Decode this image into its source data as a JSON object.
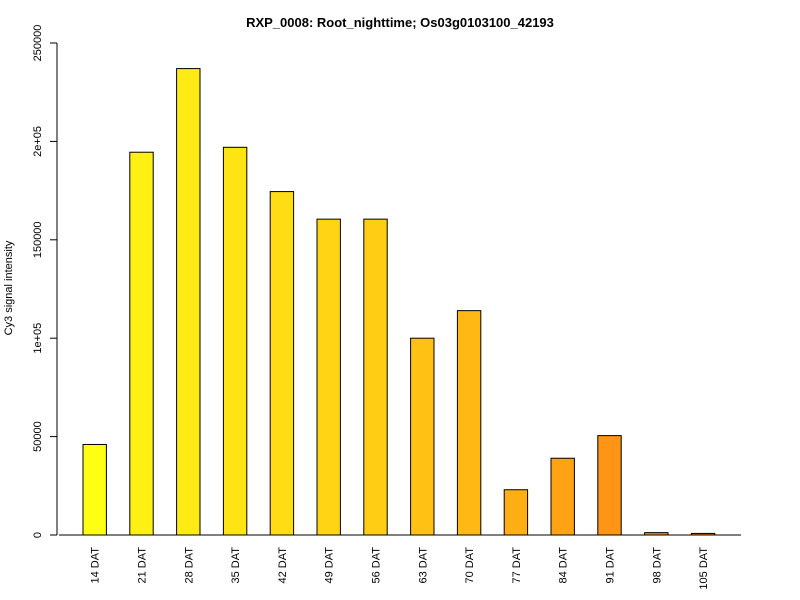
{
  "chart_data": {
    "type": "bar",
    "title": "RXP_0008: Root_nighttime; Os03g0103100_42193",
    "xlabel": "",
    "ylabel": "Cy3 signal intensity",
    "ylim": [
      0,
      250000
    ],
    "yticks": [
      0,
      50000,
      100000,
      150000,
      200000,
      250000
    ],
    "ytick_labels": [
      "0",
      "50000",
      "1e+05",
      "150000",
      "2e+05",
      "250000"
    ],
    "categories": [
      "14 DAT",
      "21 DAT",
      "28 DAT",
      "35 DAT",
      "42 DAT",
      "49 DAT",
      "56 DAT",
      "63 DAT",
      "70 DAT",
      "77 DAT",
      "84 DAT",
      "91 DAT",
      "98 DAT",
      "105 DAT"
    ],
    "values": [
      46000,
      194500,
      237000,
      197000,
      174500,
      160500,
      160500,
      100000,
      114000,
      23000,
      39000,
      50500,
      1200,
      800
    ],
    "colors": [
      "#FFFF14",
      "#FFF014",
      "#FFEB14",
      "#FFE414",
      "#FFDC14",
      "#FFD414",
      "#FFCD14",
      "#FFC114",
      "#FFB814",
      "#FFAE14",
      "#FFA314",
      "#FF9514",
      "#FF8F14",
      "#FF8A14"
    ],
    "grid": false,
    "legend": "none"
  }
}
